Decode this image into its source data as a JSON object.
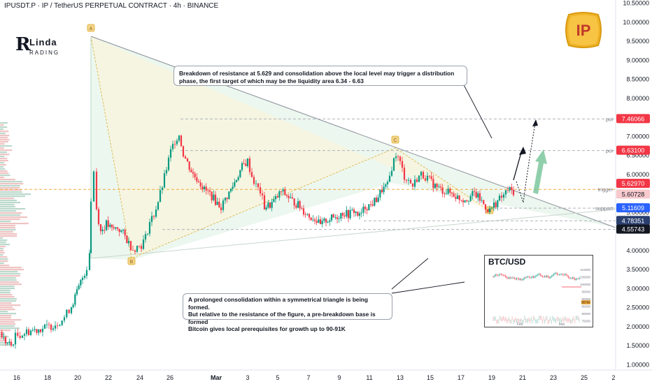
{
  "header": {
    "symbol_line": "IPUSDT.P · IP / TetherUS PERPETUAL CONTRACT · 4h · BINANCE"
  },
  "logo": {
    "mark": "R",
    "line1": "Linda",
    "line2": "RADING"
  },
  "badge": {
    "text": "IP",
    "color": "#f0b429",
    "text_color": "#c0392b"
  },
  "callouts": {
    "top": "Breakdown of resistance at 5.629 and consolidation above the local level may trigger a distribution phase, the first target of which may be the liquidity area 6.34 - 6.63",
    "bottom_line1": "A prolonged consolidation within a symmetrical triangle is being formed.",
    "bottom_line2": "But relative to the resistance of the figure, a pre-breakdown base is formed",
    "bottom_line3": "Bitcoin gives local prerequisites for growth up to 90-91K"
  },
  "levels": {
    "poi_high": {
      "label": "poi",
      "value": "7.46066",
      "color": "#f23645"
    },
    "poi_low": {
      "label": "poi",
      "value": "6.63100",
      "color": "#f23645"
    },
    "trigger": {
      "label": "trigger",
      "value_a": "5.62970",
      "value_b": "5.60728",
      "color": "#f23645"
    },
    "support": {
      "label": "support",
      "value": "5.11609",
      "color": "#2962ff"
    },
    "low_a": {
      "value": "4.78351",
      "color": "#2a3f6e"
    },
    "low_b": {
      "value": "4.55743",
      "color": "#131722"
    }
  },
  "pattern_points": [
    "A",
    "B",
    "C",
    "D"
  ],
  "inset": {
    "title": "BTC/USD",
    "y_ticks": [
      "110000",
      "105000",
      "100000",
      "95000",
      "90000",
      "85000",
      "80000",
      "75000"
    ],
    "x_ticks": [
      "Feb",
      "Mar"
    ],
    "last_price": "85700",
    "level_color": "#f23645"
  },
  "chart_data": {
    "type": "candlestick",
    "timeframe": "4h",
    "y_axis": {
      "ticks": [
        10.5,
        10.0,
        9.5,
        9.0,
        8.5,
        8.0,
        7.5,
        7.0,
        6.5,
        6.0,
        5.5,
        5.0,
        4.5,
        4.0,
        3.5,
        3.0,
        2.5,
        2.0,
        1.5,
        1.0
      ],
      "tick_labels": [
        "10.50000",
        "10.00000",
        "9.50000",
        "9.00000",
        "8.50000",
        "8.00000",
        "7.50000",
        "7.00000",
        "6.50000",
        "6.00000",
        "5.50000",
        "5.00000",
        "4.50000",
        "4.00000",
        "3.50000",
        "3.00000",
        "2.50000",
        "2.00000",
        "1.50000",
        "1.00000"
      ],
      "range": [
        0.9,
        10.55
      ]
    },
    "x_axis": {
      "ticks": [
        "16",
        "18",
        "20",
        "22",
        "24",
        "26",
        "Mar",
        "3",
        "5",
        "7",
        "9",
        "11",
        "13",
        "15",
        "17",
        "19",
        "21",
        "23",
        "25",
        "2"
      ]
    },
    "price_path": [
      [
        0,
        1.85
      ],
      [
        8,
        1.6
      ],
      [
        16,
        1.5
      ],
      [
        22,
        1.75
      ],
      [
        32,
        1.82
      ],
      [
        44,
        1.9
      ],
      [
        58,
        1.95
      ],
      [
        70,
        2.0
      ],
      [
        82,
        2.1
      ],
      [
        92,
        2.25
      ],
      [
        102,
        2.55
      ],
      [
        110,
        2.9
      ],
      [
        118,
        3.3
      ],
      [
        124,
        3.55
      ],
      [
        128,
        4.0
      ],
      [
        130,
        5.3
      ],
      [
        134,
        6.1
      ],
      [
        138,
        5.1
      ],
      [
        144,
        4.5
      ],
      [
        152,
        4.7
      ],
      [
        160,
        4.55
      ],
      [
        168,
        4.6
      ],
      [
        176,
        4.45
      ],
      [
        184,
        4.2
      ],
      [
        190,
        4.05
      ],
      [
        196,
        4.1
      ],
      [
        202,
        4.15
      ],
      [
        208,
        4.35
      ],
      [
        214,
        4.75
      ],
      [
        220,
        4.95
      ],
      [
        226,
        5.3
      ],
      [
        232,
        5.7
      ],
      [
        238,
        6.15
      ],
      [
        244,
        6.6
      ],
      [
        250,
        6.9
      ],
      [
        256,
        7.05
      ],
      [
        262,
        6.55
      ],
      [
        268,
        6.3
      ],
      [
        276,
        6.0
      ],
      [
        284,
        5.85
      ],
      [
        292,
        5.6
      ],
      [
        300,
        5.5
      ],
      [
        308,
        5.3
      ],
      [
        316,
        5.15
      ],
      [
        322,
        5.35
      ],
      [
        330,
        5.6
      ],
      [
        338,
        5.9
      ],
      [
        346,
        6.2
      ],
      [
        354,
        6.35
      ],
      [
        360,
        5.95
      ],
      [
        366,
        5.7
      ],
      [
        372,
        5.55
      ],
      [
        378,
        5.15
      ],
      [
        386,
        5.2
      ],
      [
        394,
        5.35
      ],
      [
        402,
        5.55
      ],
      [
        410,
        5.45
      ],
      [
        418,
        5.3
      ],
      [
        426,
        5.2
      ],
      [
        434,
        5.05
      ],
      [
        442,
        4.9
      ],
      [
        450,
        4.85
      ],
      [
        458,
        4.65
      ],
      [
        466,
        4.8
      ],
      [
        474,
        4.85
      ],
      [
        482,
        4.9
      ],
      [
        490,
        5.0
      ],
      [
        498,
        4.95
      ],
      [
        506,
        5.05
      ],
      [
        514,
        4.9
      ],
      [
        522,
        5.15
      ],
      [
        530,
        5.2
      ],
      [
        538,
        5.35
      ],
      [
        546,
        5.6
      ],
      [
        554,
        5.7
      ],
      [
        560,
        6.2
      ],
      [
        566,
        6.55
      ],
      [
        572,
        6.3
      ],
      [
        578,
        5.95
      ],
      [
        584,
        5.85
      ],
      [
        590,
        5.7
      ],
      [
        596,
        5.9
      ],
      [
        602,
        6.0
      ],
      [
        608,
        5.95
      ],
      [
        614,
        5.85
      ],
      [
        622,
        5.7
      ],
      [
        630,
        5.6
      ],
      [
        638,
        5.55
      ],
      [
        646,
        5.5
      ],
      [
        654,
        5.4
      ],
      [
        662,
        5.35
      ],
      [
        670,
        5.4
      ],
      [
        678,
        5.5
      ],
      [
        686,
        5.35
      ],
      [
        694,
        5.15
      ],
      [
        700,
        5.05
      ],
      [
        706,
        5.2
      ],
      [
        714,
        5.35
      ],
      [
        720,
        5.45
      ],
      [
        726,
        5.6
      ],
      [
        734,
        5.55
      ]
    ]
  }
}
